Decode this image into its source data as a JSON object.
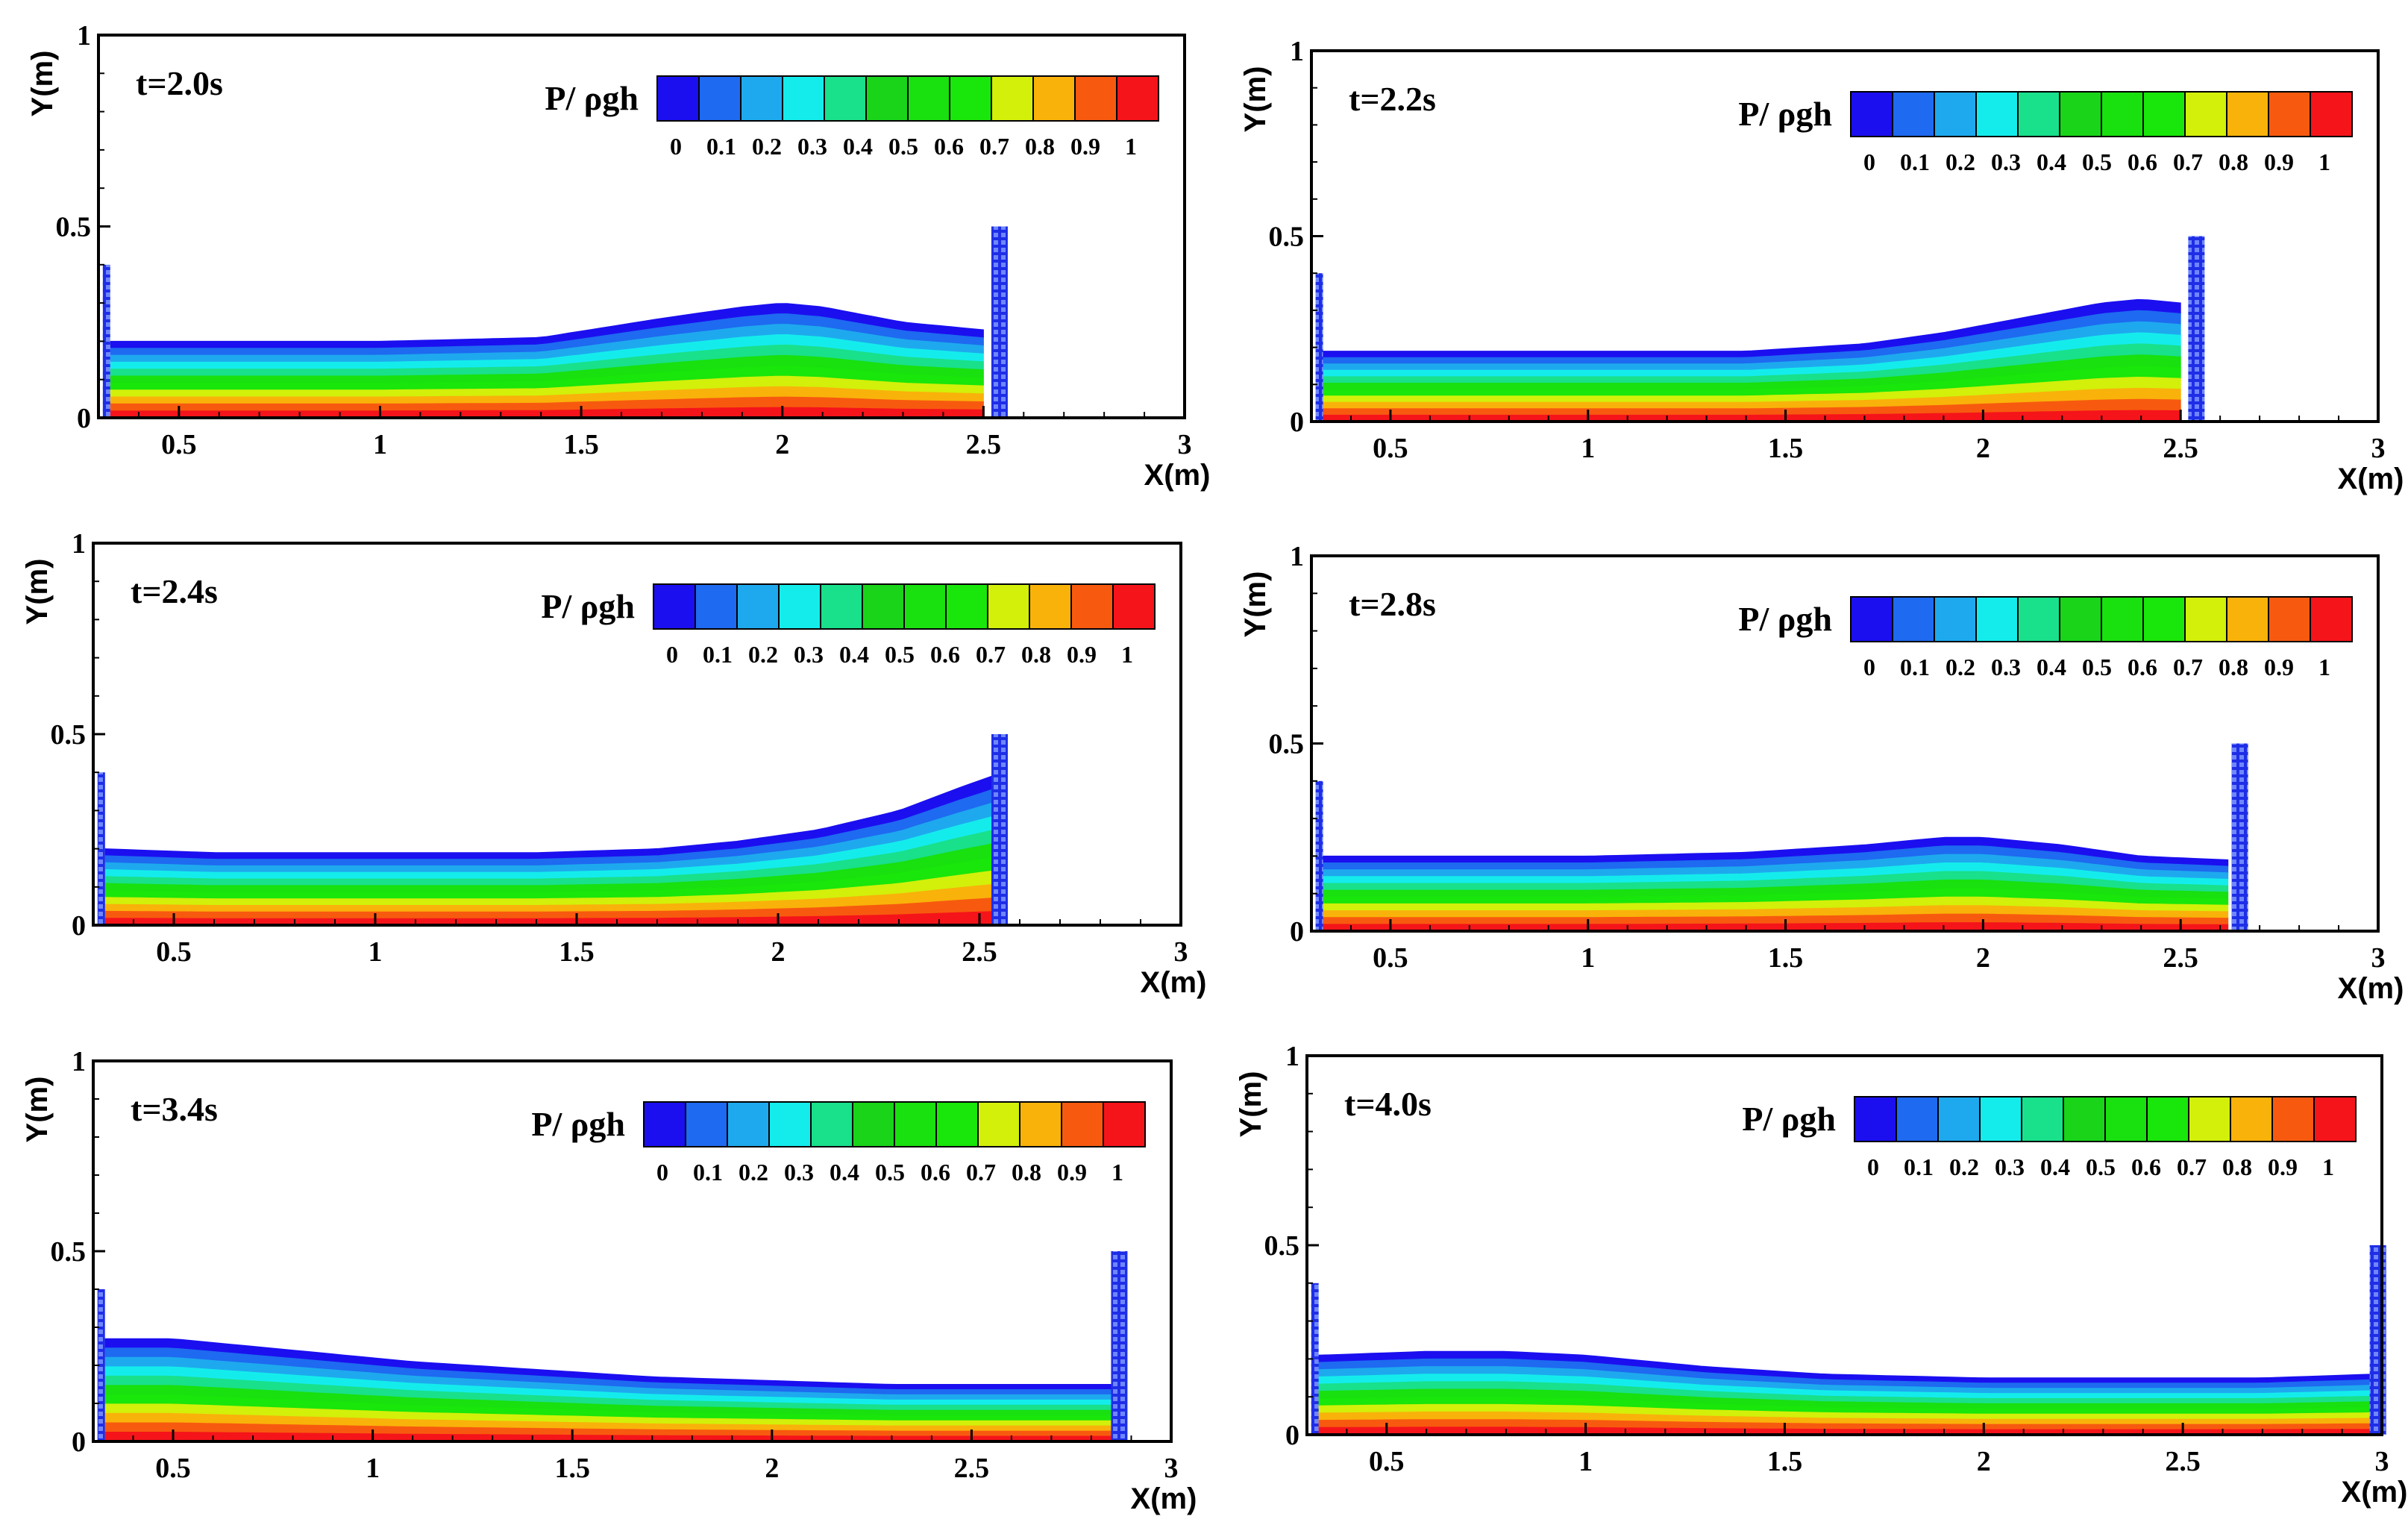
{
  "chart_data": [
    {
      "type": "heatmap",
      "title": "t=2.0s",
      "xlabel": "X(m)",
      "ylabel": "Y(m)",
      "xlim": [
        0.3,
        3
      ],
      "ylim": [
        0,
        1
      ],
      "xticks": [
        "0.5",
        "1",
        "1.5",
        "2",
        "2.5",
        "3"
      ],
      "yticks": [
        "0",
        "0.5",
        "1"
      ],
      "colorbar": {
        "label": "P/ ρgh",
        "ticks": [
          "0",
          "0.1",
          "0.2",
          "0.3",
          "0.4",
          "0.5",
          "0.6",
          "0.7",
          "0.8",
          "0.9",
          "1"
        ]
      },
      "left_wall": {
        "x": 0.32,
        "height": 0.4
      },
      "right_wall": {
        "x": 2.54,
        "height": 0.5
      },
      "surface": {
        "x": [
          0.33,
          0.6,
          1.0,
          1.4,
          1.7,
          1.9,
          2.0,
          2.1,
          2.3,
          2.5
        ],
        "y": [
          0.2,
          0.2,
          0.2,
          0.21,
          0.26,
          0.29,
          0.3,
          0.29,
          0.25,
          0.23
        ]
      }
    },
    {
      "type": "heatmap",
      "title": "t=2.2s",
      "xlabel": "X(m)",
      "ylabel": "Y(m)",
      "xlim": [
        0.3,
        3
      ],
      "ylim": [
        0,
        1
      ],
      "xticks": [
        "0.5",
        "1",
        "1.5",
        "2",
        "2.5",
        "3"
      ],
      "yticks": [
        "0",
        "0.5",
        "1"
      ],
      "colorbar": {
        "label": "P/ ρgh",
        "ticks": [
          "0",
          "0.1",
          "0.2",
          "0.3",
          "0.4",
          "0.5",
          "0.6",
          "0.7",
          "0.8",
          "0.9",
          "1"
        ]
      },
      "left_wall": {
        "x": 0.32,
        "height": 0.4
      },
      "right_wall": {
        "x": 2.54,
        "height": 0.5
      },
      "surface": {
        "x": [
          0.33,
          0.6,
          1.0,
          1.4,
          1.7,
          1.9,
          2.1,
          2.3,
          2.4,
          2.5
        ],
        "y": [
          0.19,
          0.19,
          0.19,
          0.19,
          0.21,
          0.24,
          0.28,
          0.32,
          0.33,
          0.32
        ]
      }
    },
    {
      "type": "heatmap",
      "title": "t=2.4s",
      "xlabel": "X(m)",
      "ylabel": "Y(m)",
      "xlim": [
        0.3,
        3
      ],
      "ylim": [
        0,
        1
      ],
      "xticks": [
        "0.5",
        "1",
        "1.5",
        "2",
        "2.5",
        "3"
      ],
      "yticks": [
        "0",
        "0.5",
        "1"
      ],
      "colorbar": {
        "label": "P/ ρgh",
        "ticks": [
          "0",
          "0.1",
          "0.2",
          "0.3",
          "0.4",
          "0.5",
          "0.6",
          "0.7",
          "0.8",
          "0.9",
          "1"
        ]
      },
      "left_wall": {
        "x": 0.32,
        "height": 0.4
      },
      "right_wall": {
        "x": 2.55,
        "height": 0.5
      },
      "surface": {
        "x": [
          0.33,
          0.6,
          1.0,
          1.4,
          1.7,
          1.9,
          2.1,
          2.3,
          2.45,
          2.53
        ],
        "y": [
          0.2,
          0.19,
          0.19,
          0.19,
          0.2,
          0.22,
          0.25,
          0.3,
          0.36,
          0.39
        ]
      }
    },
    {
      "type": "heatmap",
      "title": "t=2.8s",
      "xlabel": "X(m)",
      "ylabel": "Y(m)",
      "xlim": [
        0.3,
        3
      ],
      "ylim": [
        0,
        1
      ],
      "xticks": [
        "0.5",
        "1",
        "1.5",
        "2",
        "2.5",
        "3"
      ],
      "yticks": [
        "0",
        "0.5",
        "1"
      ],
      "colorbar": {
        "label": "P/ ρgh",
        "ticks": [
          "0",
          "0.1",
          "0.2",
          "0.3",
          "0.4",
          "0.5",
          "0.6",
          "0.7",
          "0.8",
          "0.9",
          "1"
        ]
      },
      "left_wall": {
        "x": 0.32,
        "height": 0.4
      },
      "right_wall": {
        "x": 2.65,
        "height": 0.5
      },
      "surface": {
        "x": [
          0.33,
          0.6,
          1.0,
          1.4,
          1.7,
          1.9,
          2.0,
          2.2,
          2.4,
          2.62
        ],
        "y": [
          0.2,
          0.2,
          0.2,
          0.21,
          0.23,
          0.25,
          0.25,
          0.23,
          0.2,
          0.19
        ]
      }
    },
    {
      "type": "heatmap",
      "title": "t=3.4s",
      "xlabel": "X(m)",
      "ylabel": "Y(m)",
      "xlim": [
        0.3,
        3
      ],
      "ylim": [
        0,
        1
      ],
      "xticks": [
        "0.5",
        "1",
        "1.5",
        "2",
        "2.5",
        "3"
      ],
      "yticks": [
        "0",
        "0.5",
        "1"
      ],
      "colorbar": {
        "label": "P/ ρgh",
        "ticks": [
          "0",
          "0.1",
          "0.2",
          "0.3",
          "0.4",
          "0.5",
          "0.6",
          "0.7",
          "0.8",
          "0.9",
          "1"
        ]
      },
      "left_wall": {
        "x": 0.32,
        "height": 0.4
      },
      "right_wall": {
        "x": 2.87,
        "height": 0.5
      },
      "surface": {
        "x": [
          0.33,
          0.5,
          0.8,
          1.1,
          1.4,
          1.7,
          2.0,
          2.3,
          2.6,
          2.85
        ],
        "y": [
          0.27,
          0.27,
          0.24,
          0.21,
          0.19,
          0.17,
          0.16,
          0.15,
          0.15,
          0.15
        ]
      }
    },
    {
      "type": "heatmap",
      "title": "t=4.0s",
      "xlabel": "X(m)",
      "ylabel": "Y(m)",
      "xlim": [
        0.3,
        3
      ],
      "ylim": [
        0,
        1
      ],
      "xticks": [
        "0.5",
        "1",
        "1.5",
        "2",
        "2.5",
        "3"
      ],
      "yticks": [
        "0",
        "0.5",
        "1"
      ],
      "colorbar": {
        "label": "P/ ρgh",
        "ticks": [
          "0",
          "0.1",
          "0.2",
          "0.3",
          "0.4",
          "0.5",
          "0.6",
          "0.7",
          "0.8",
          "0.9",
          "1"
        ]
      },
      "left_wall": {
        "x": 0.32,
        "height": 0.4
      },
      "right_wall": {
        "x": 2.99,
        "height": 0.5
      },
      "surface": {
        "x": [
          0.33,
          0.6,
          0.8,
          1.0,
          1.3,
          1.6,
          2.0,
          2.4,
          2.7,
          2.98
        ],
        "y": [
          0.21,
          0.22,
          0.22,
          0.21,
          0.18,
          0.16,
          0.15,
          0.15,
          0.15,
          0.16
        ]
      }
    }
  ],
  "colors": {
    "colorbar": [
      "#1b0ff0",
      "#1e6af0",
      "#1ea9ee",
      "#14ecec",
      "#19e08b",
      "#19d419",
      "#19e00f",
      "#19e60a",
      "#d2f00a",
      "#f9b20a",
      "#f75a0f",
      "#f5141a"
    ],
    "wall": "#1e2ee6"
  }
}
